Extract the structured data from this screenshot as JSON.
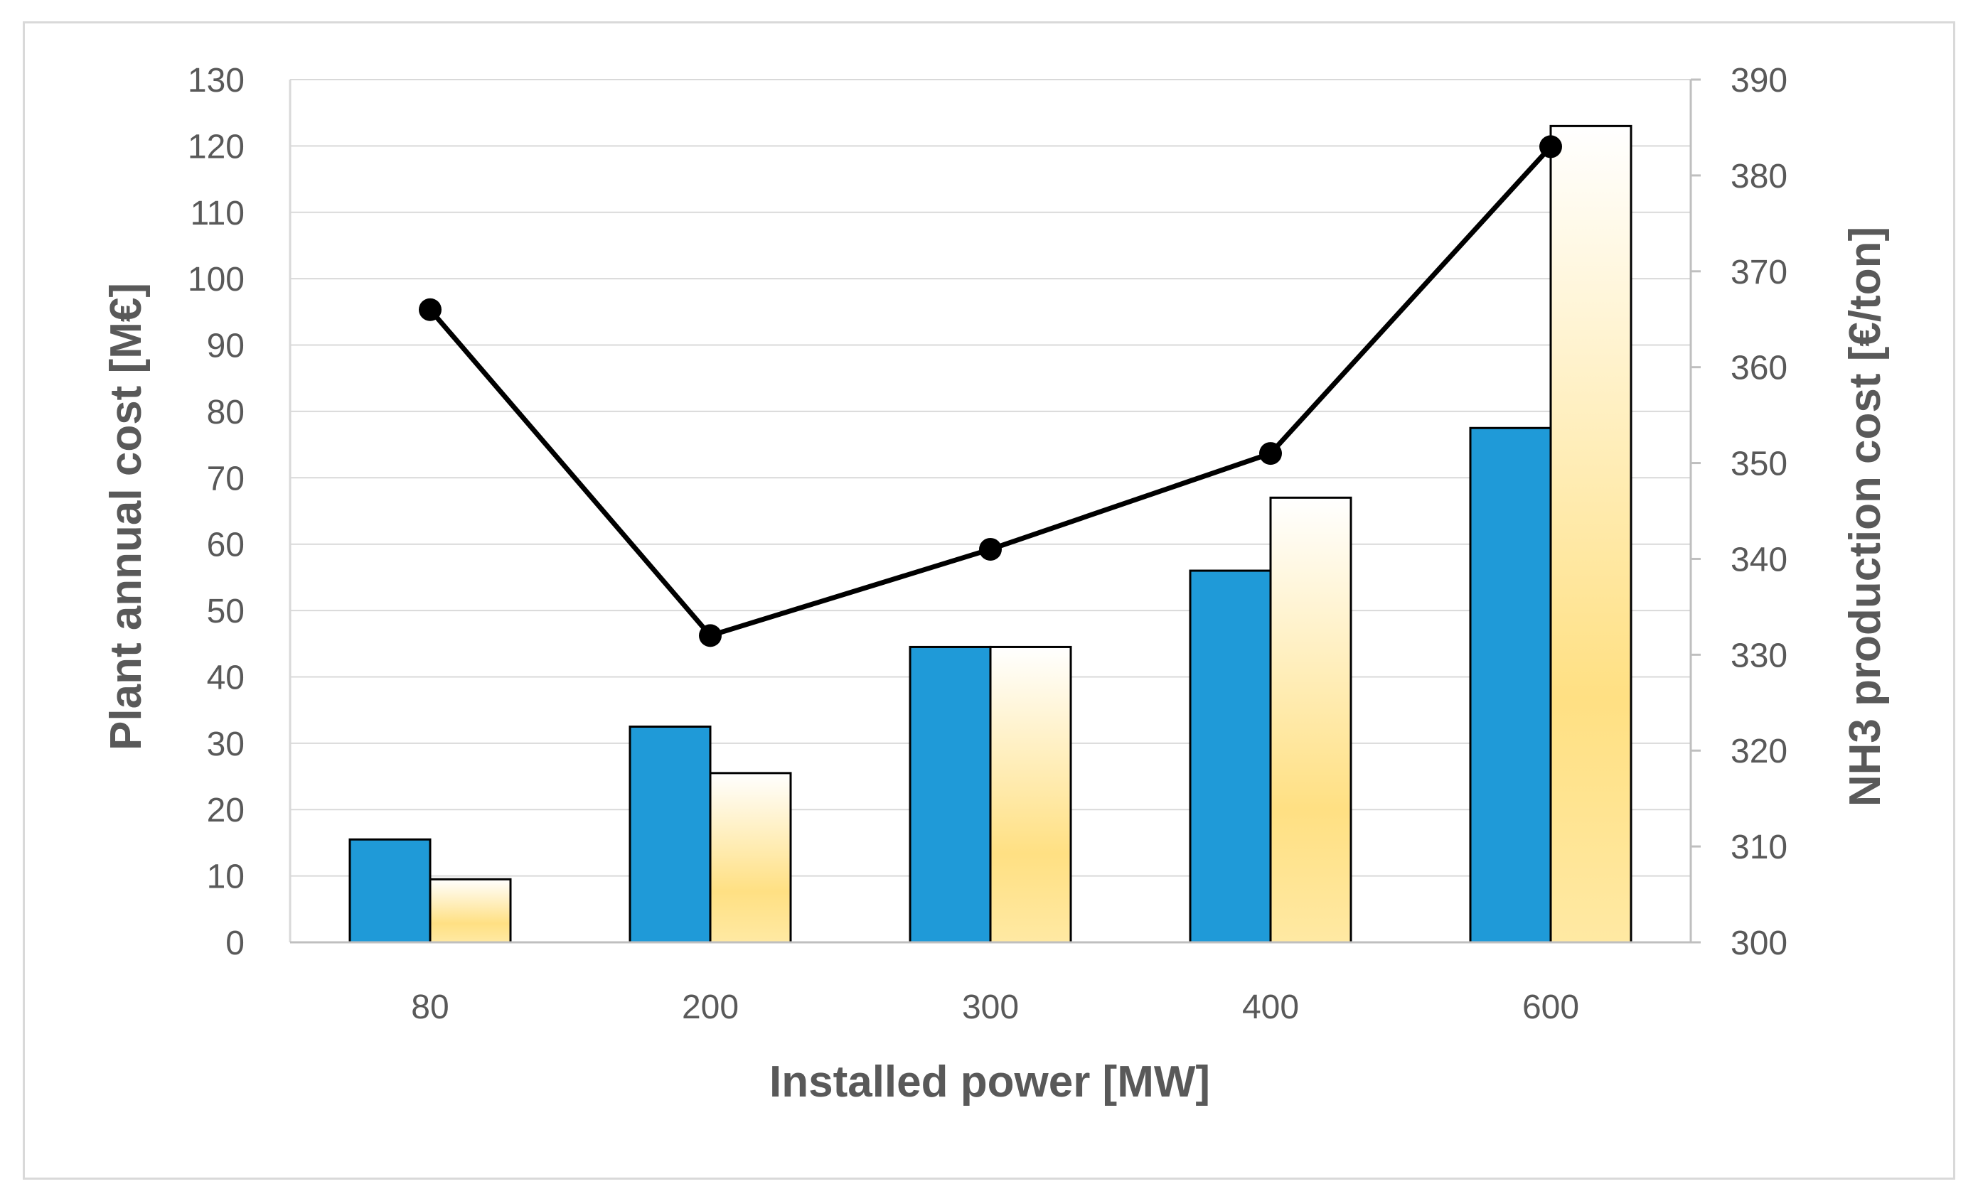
{
  "chart_data": {
    "type": "bar+line",
    "title": "",
    "xlabel": "Installed power [MW]",
    "ylabel_left": "Plant annual cost [M€]",
    "ylabel_right": "NH3 production cost [€/ton]",
    "categories": [
      "80",
      "200",
      "300",
      "400",
      "600"
    ],
    "ylim_left": [
      0,
      130
    ],
    "ylim_right": [
      300,
      390
    ],
    "yticks_left": [
      0,
      10,
      20,
      30,
      40,
      50,
      60,
      70,
      80,
      90,
      100,
      110,
      120,
      130
    ],
    "yticks_right": [
      300,
      310,
      320,
      330,
      340,
      350,
      360,
      370,
      380,
      390
    ],
    "grid": true,
    "legend": "none",
    "series": [
      {
        "name": "Series 1",
        "type": "bar",
        "axis": "left",
        "color": "#1f9ad8",
        "values": [
          15.5,
          32.5,
          44.5,
          56,
          77.5
        ]
      },
      {
        "name": "Series 2",
        "type": "bar",
        "axis": "left",
        "color": "#ffe083",
        "values": [
          9.5,
          25.5,
          44.5,
          67,
          123
        ]
      },
      {
        "name": "Series 3",
        "type": "line",
        "axis": "right",
        "color": "#000000",
        "values": [
          366,
          332,
          341,
          351,
          383
        ]
      }
    ]
  }
}
